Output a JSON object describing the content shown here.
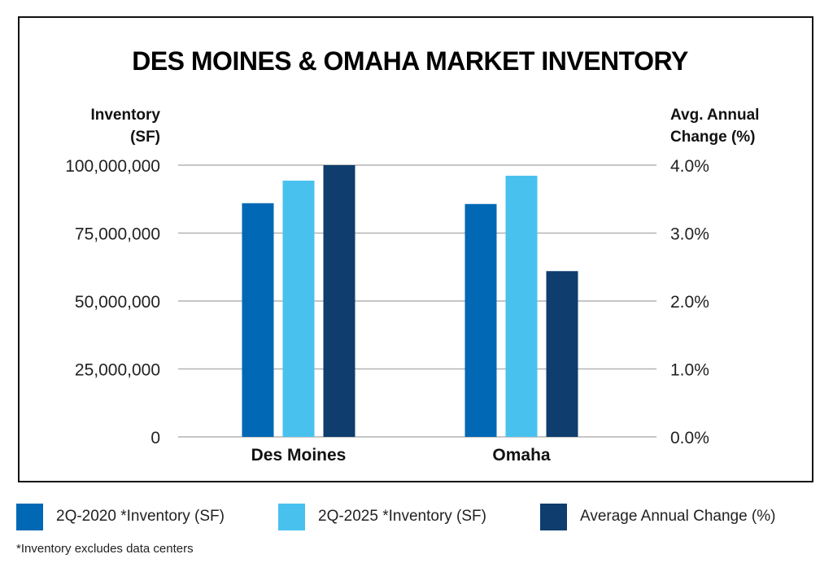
{
  "chart_data": {
    "type": "bar",
    "title": "DES MOINES & OMAHA MARKET INVENTORY",
    "ylabel_left": [
      "Inventory",
      "(SF)"
    ],
    "ylabel_right": [
      "Avg. Annual",
      "Change (%)"
    ],
    "xlabel": "",
    "categories": [
      "Des Moines",
      "Omaha"
    ],
    "y_left": {
      "ylim": [
        0,
        100000000
      ],
      "ticks": [
        0,
        25000000,
        50000000,
        75000000,
        100000000
      ],
      "tick_labels": [
        "0",
        "25,000,000",
        "50,000,000",
        "75,000,000",
        "100,000,000"
      ]
    },
    "y_right": {
      "ylim": [
        0,
        4.0
      ],
      "ticks": [
        0,
        1,
        2,
        3,
        4
      ],
      "tick_labels": [
        "0.0%",
        "1.0%",
        "2.0%",
        "3.0%",
        "4.0%"
      ]
    },
    "grid": true,
    "series": [
      {
        "name": "2Q-2020 *Inventory (SF)",
        "axis": "left",
        "color": "#0068b4",
        "values": [
          86000000,
          85700000
        ]
      },
      {
        "name": "2Q-2025 *Inventory (SF)",
        "axis": "left",
        "color": "#48c1ef",
        "values": [
          94300000,
          96100000
        ]
      },
      {
        "name": "Average Annual Change (%)",
        "axis": "right",
        "color": "#0e3d6e",
        "values": [
          4.0,
          2.44
        ]
      }
    ],
    "legend_position": "bottom",
    "footnote": "*Inventory excludes data centers"
  }
}
